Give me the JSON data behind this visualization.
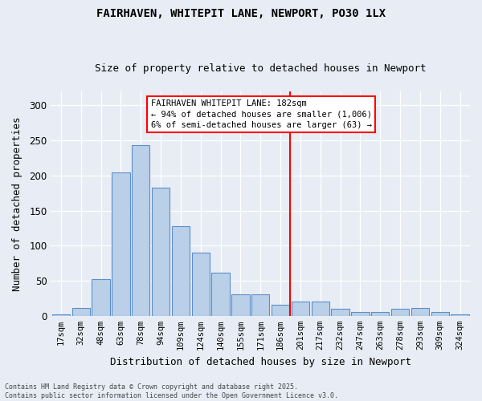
{
  "title1": "FAIRHAVEN, WHITEPIT LANE, NEWPORT, PO30 1LX",
  "title2": "Size of property relative to detached houses in Newport",
  "xlabel": "Distribution of detached houses by size in Newport",
  "ylabel": "Number of detached properties",
  "footnote1": "Contains HM Land Registry data © Crown copyright and database right 2025.",
  "footnote2": "Contains public sector information licensed under the Open Government Licence v3.0.",
  "categories": [
    "17sqm",
    "32sqm",
    "48sqm",
    "63sqm",
    "78sqm",
    "94sqm",
    "109sqm",
    "124sqm",
    "140sqm",
    "155sqm",
    "171sqm",
    "186sqm",
    "201sqm",
    "217sqm",
    "232sqm",
    "247sqm",
    "263sqm",
    "278sqm",
    "293sqm",
    "309sqm",
    "324sqm"
  ],
  "values": [
    2,
    11,
    52,
    204,
    243,
    183,
    128,
    90,
    62,
    31,
    31,
    16,
    20,
    20,
    10,
    5,
    5,
    10,
    11,
    5,
    2
  ],
  "bar_color": "#bad0e8",
  "bar_edge_color": "#5b8fc9",
  "background_color": "#e8edf5",
  "vline_x_index": 11,
  "vline_color": "red",
  "annotation_text_line1": "FAIRHAVEN WHITEPIT LANE: 182sqm",
  "annotation_text_line2": "← 94% of detached houses are smaller (1,006)",
  "annotation_text_line3": "6% of semi-detached houses are larger (63) →",
  "annotation_box_color": "white",
  "annotation_box_edge": "red",
  "ylim": [
    0,
    320
  ],
  "yticks": [
    0,
    50,
    100,
    150,
    200,
    250,
    300
  ]
}
